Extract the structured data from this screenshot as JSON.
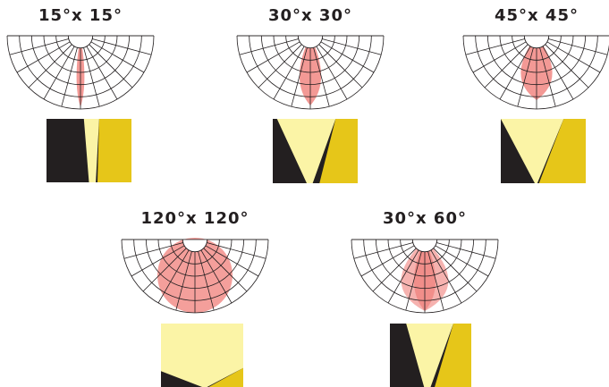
{
  "items": [
    {
      "label": "15°x 15°"
    },
    {
      "label": "30°x 30°"
    },
    {
      "label": "45°x 45°"
    },
    {
      "label": "120°x 120°"
    },
    {
      "label": "30°x 60°"
    }
  ]
}
